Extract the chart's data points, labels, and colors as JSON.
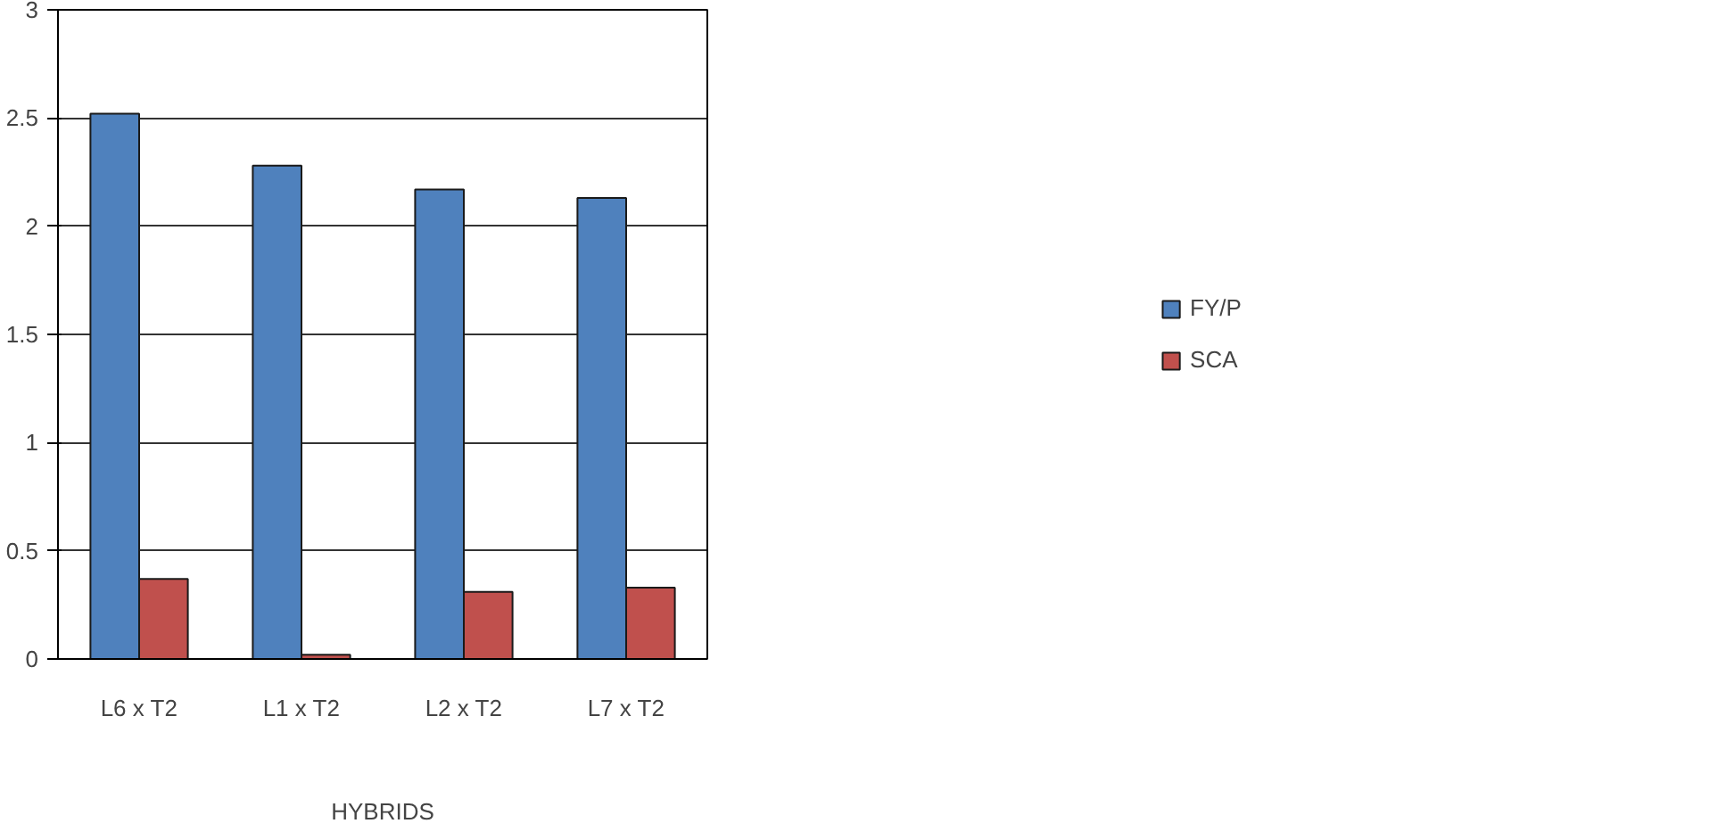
{
  "chart_data": {
    "type": "bar",
    "xlabel": "HYBRIDS",
    "categories": [
      "L6 x T2",
      "L1 x T2",
      "L2 x T2",
      "L7 x T2"
    ],
    "series": [
      {
        "name": "FY/P",
        "color": "#4f81bd",
        "values": [
          2.52,
          2.28,
          2.17,
          2.13
        ]
      },
      {
        "name": "SCA",
        "color": "#c0504d",
        "values": [
          0.37,
          0.02,
          0.31,
          0.33
        ]
      }
    ],
    "ylim": [
      0,
      3
    ],
    "yticks": [
      0,
      0.5,
      1,
      1.5,
      2,
      2.5,
      3
    ],
    "grid": "y",
    "legend": "right"
  }
}
